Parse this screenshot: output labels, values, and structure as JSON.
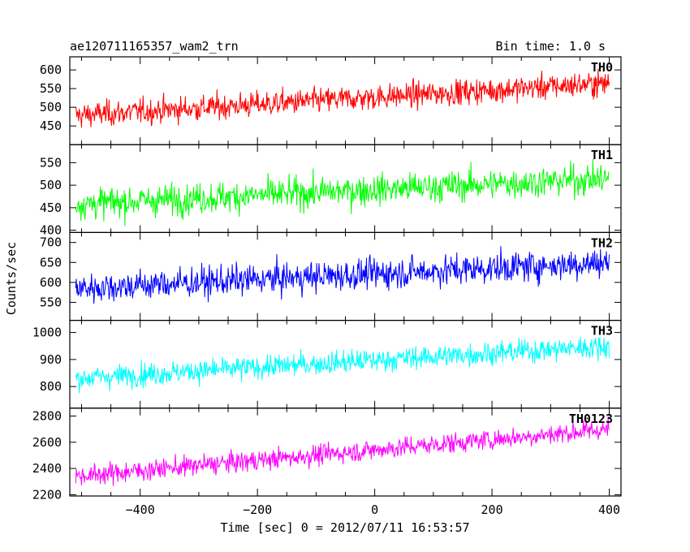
{
  "chart_data": {
    "type": "line",
    "title_left": "ae120711165357_wam2_trn",
    "title_right": "Bin time: 1.0 s",
    "xlabel": "Time [sec] 0 = 2012/07/11 16:53:57",
    "ylabel": "Counts/sec",
    "xlim": [
      -520,
      420
    ],
    "x_ticks": [
      -400,
      -200,
      0,
      200,
      400
    ],
    "x_tick_labels": [
      "−400",
      "−200",
      "0",
      "200",
      "400"
    ],
    "bin_time": 1.0,
    "x_start": -510,
    "x_end": 400,
    "panels": [
      {
        "name": "TH0",
        "color": "#ff0000",
        "ylim": [
          400,
          635
        ],
        "y_ticks": [
          450,
          500,
          550,
          600
        ],
        "trend_start": 478,
        "trend_end": 565,
        "noise": 24
      },
      {
        "name": "TH1",
        "color": "#00ff00",
        "ylim": [
          395,
          590
        ],
        "y_ticks": [
          400,
          450,
          500,
          550
        ],
        "trend_start": 458,
        "trend_end": 515,
        "noise": 24
      },
      {
        "name": "TH2",
        "color": "#0000ff",
        "ylim": [
          505,
          725
        ],
        "y_ticks": [
          550,
          600,
          650,
          700
        ],
        "trend_start": 585,
        "trend_end": 650,
        "noise": 27
      },
      {
        "name": "TH3",
        "color": "#00ffff",
        "ylim": [
          720,
          1045
        ],
        "y_ticks": [
          800,
          900,
          1000
        ],
        "trend_start": 830,
        "trend_end": 950,
        "noise": 30
      },
      {
        "name": "TH0123",
        "color": "#ff00ff",
        "ylim": [
          2190,
          2860
        ],
        "y_ticks": [
          2200,
          2400,
          2600,
          2800
        ],
        "trend_start": 2340,
        "trend_end": 2700,
        "noise": 55
      }
    ]
  }
}
